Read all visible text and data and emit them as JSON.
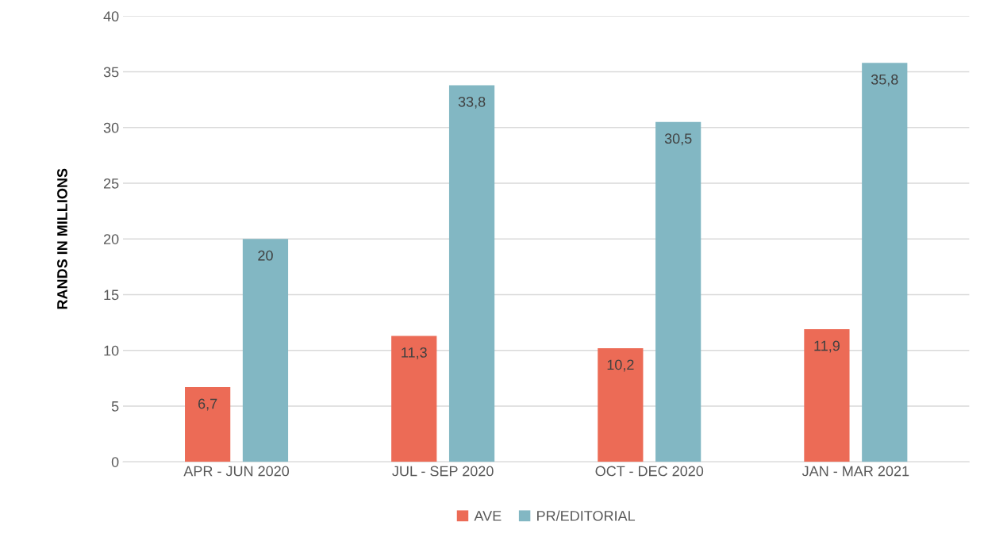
{
  "chart_data": {
    "type": "bar",
    "ylabel": "RANDS IN MILLIONS",
    "categories": [
      "APR - JUN 2020",
      "JUL - SEP 2020",
      "OCT - DEC 2020",
      "JAN - MAR 2021"
    ],
    "series": [
      {
        "name": "AVE",
        "color": "#ec6b56",
        "values": [
          6.7,
          11.3,
          10.2,
          11.9
        ],
        "value_labels": [
          "6,7",
          "11,3",
          "10,2",
          "11,9"
        ]
      },
      {
        "name": "PR/EDITORIAL",
        "color": "#82b7c3",
        "values": [
          20,
          33.8,
          30.5,
          35.8
        ],
        "value_labels": [
          "20",
          "33,8",
          "30,5",
          "35,8"
        ]
      }
    ],
    "ylim": [
      0,
      40
    ],
    "yticks": [
      0,
      5,
      10,
      15,
      20,
      25,
      30,
      35,
      40
    ],
    "grid": "y",
    "legend": "bottom"
  }
}
